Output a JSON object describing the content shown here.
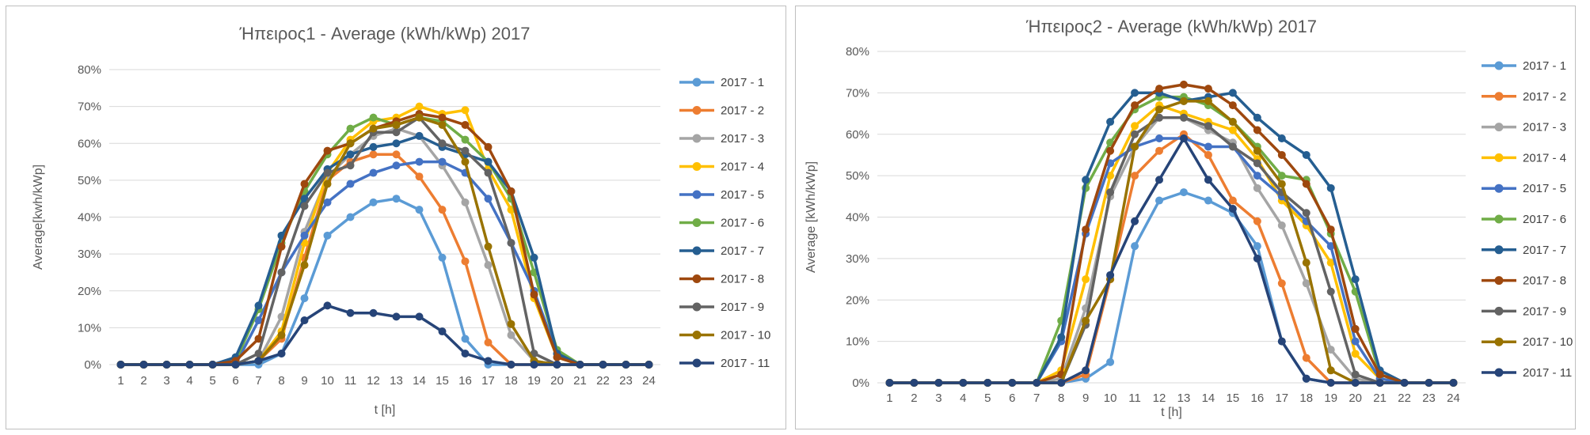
{
  "chart_data": [
    {
      "type": "line",
      "title": "Ήπειρος1 - Average (kWh/kWp) 2017",
      "xlabel": "t [h]",
      "ylabel": "Average[kwh/kWp]",
      "x": [
        1,
        2,
        3,
        4,
        5,
        6,
        7,
        8,
        9,
        10,
        11,
        12,
        13,
        14,
        15,
        16,
        17,
        18,
        19,
        20,
        21,
        22,
        23,
        24
      ],
      "ylim": [
        0,
        80
      ],
      "yticks": [
        "0%",
        "10%",
        "20%",
        "30%",
        "40%",
        "50%",
        "60%",
        "70%",
        "80%"
      ],
      "grid": true,
      "legend_position": "right",
      "series": [
        {
          "name": "2017 - 1",
          "color": "#5b9bd5",
          "values": [
            0,
            0,
            0,
            0,
            0,
            0,
            0,
            3,
            18,
            35,
            40,
            44,
            45,
            42,
            29,
            7,
            0,
            0,
            0,
            0,
            0,
            0,
            0,
            0
          ]
        },
        {
          "name": "2017 - 2",
          "color": "#ed7d31",
          "values": [
            0,
            0,
            0,
            0,
            0,
            0,
            1,
            7,
            29,
            50,
            55,
            57,
            57,
            51,
            42,
            28,
            6,
            0,
            0,
            0,
            0,
            0,
            0,
            0
          ]
        },
        {
          "name": "2017 - 3",
          "color": "#a5a5a5",
          "values": [
            0,
            0,
            0,
            0,
            0,
            0,
            1,
            13,
            36,
            51,
            57,
            62,
            64,
            62,
            54,
            44,
            27,
            8,
            1,
            0,
            0,
            0,
            0,
            0
          ]
        },
        {
          "name": "2017 - 4",
          "color": "#ffc000",
          "values": [
            0,
            0,
            0,
            0,
            0,
            0,
            1,
            9,
            33,
            52,
            61,
            66,
            67,
            70,
            68,
            69,
            53,
            42,
            18,
            2,
            0,
            0,
            0,
            0
          ]
        },
        {
          "name": "2017 - 5",
          "color": "#4472c4",
          "values": [
            0,
            0,
            0,
            0,
            0,
            0,
            12,
            25,
            35,
            44,
            49,
            52,
            54,
            55,
            55,
            52,
            45,
            33,
            20,
            3,
            0,
            0,
            0,
            0
          ]
        },
        {
          "name": "2017 - 6",
          "color": "#70ad47",
          "values": [
            0,
            0,
            0,
            0,
            0,
            1,
            15,
            33,
            47,
            57,
            64,
            67,
            65,
            67,
            66,
            61,
            55,
            45,
            25,
            4,
            0,
            0,
            0,
            0
          ]
        },
        {
          "name": "2017 - 7",
          "color": "#255e91",
          "values": [
            0,
            0,
            0,
            0,
            0,
            2,
            16,
            35,
            45,
            53,
            57,
            59,
            60,
            62,
            59,
            57,
            55,
            47,
            29,
            3,
            0,
            0,
            0,
            0
          ]
        },
        {
          "name": "2017 - 8",
          "color": "#9e480e",
          "values": [
            0,
            0,
            0,
            0,
            0,
            1,
            7,
            32,
            49,
            58,
            60,
            64,
            66,
            68,
            67,
            65,
            59,
            47,
            19,
            2,
            0,
            0,
            0,
            0
          ]
        },
        {
          "name": "2017 - 9",
          "color": "#636363",
          "values": [
            0,
            0,
            0,
            0,
            0,
            0,
            3,
            25,
            43,
            52,
            54,
            63,
            63,
            67,
            60,
            58,
            52,
            33,
            3,
            0,
            0,
            0,
            0,
            0
          ]
        },
        {
          "name": "2017 - 10",
          "color": "#997300",
          "values": [
            0,
            0,
            0,
            0,
            0,
            0,
            1,
            8,
            27,
            49,
            60,
            64,
            65,
            67,
            65,
            55,
            32,
            11,
            1,
            0,
            0,
            0,
            0,
            0
          ]
        },
        {
          "name": "2017 - 11",
          "color": "#264478",
          "values": [
            0,
            0,
            0,
            0,
            0,
            0,
            1,
            3,
            12,
            16,
            14,
            14,
            13,
            13,
            9,
            3,
            1,
            0,
            0,
            0,
            0,
            0,
            0,
            0
          ]
        }
      ]
    },
    {
      "type": "line",
      "title": "Ήπειρος2 - Average (kWh/kWp) 2017",
      "xlabel": "t [h]",
      "ylabel": "Average [kWh/kWp]",
      "x": [
        1,
        2,
        3,
        4,
        5,
        6,
        7,
        8,
        9,
        10,
        11,
        12,
        13,
        14,
        15,
        16,
        17,
        18,
        19,
        20,
        21,
        22,
        23,
        24
      ],
      "ylim": [
        0,
        80
      ],
      "yticks": [
        "0%",
        "10%",
        "20%",
        "30%",
        "40%",
        "50%",
        "60%",
        "70%",
        "80%"
      ],
      "grid": true,
      "legend_position": "right",
      "series": [
        {
          "name": "2017 - 1",
          "color": "#5b9bd5",
          "values": [
            0,
            0,
            0,
            0,
            0,
            0,
            0,
            0,
            1,
            5,
            33,
            44,
            46,
            44,
            41,
            33,
            10,
            1,
            0,
            0,
            0,
            0,
            0,
            0
          ]
        },
        {
          "name": "2017 - 2",
          "color": "#ed7d31",
          "values": [
            0,
            0,
            0,
            0,
            0,
            0,
            0,
            0,
            2,
            25,
            50,
            56,
            60,
            55,
            44,
            39,
            24,
            6,
            0,
            0,
            0,
            0,
            0,
            0
          ]
        },
        {
          "name": "2017 - 3",
          "color": "#a5a5a5",
          "values": [
            0,
            0,
            0,
            0,
            0,
            0,
            0,
            1,
            18,
            45,
            57,
            64,
            64,
            61,
            58,
            47,
            38,
            24,
            8,
            1,
            0,
            0,
            0,
            0
          ]
        },
        {
          "name": "2017 - 4",
          "color": "#ffc000",
          "values": [
            0,
            0,
            0,
            0,
            0,
            0,
            0,
            3,
            25,
            50,
            62,
            67,
            65,
            63,
            61,
            54,
            44,
            38,
            29,
            7,
            1,
            0,
            0,
            0
          ]
        },
        {
          "name": "2017 - 5",
          "color": "#4472c4",
          "values": [
            0,
            0,
            0,
            0,
            0,
            0,
            0,
            10,
            36,
            53,
            57,
            59,
            59,
            57,
            57,
            50,
            45,
            39,
            33,
            10,
            1,
            0,
            0,
            0
          ]
        },
        {
          "name": "2017 - 6",
          "color": "#70ad47",
          "values": [
            0,
            0,
            0,
            0,
            0,
            0,
            0,
            15,
            47,
            58,
            66,
            69,
            69,
            67,
            63,
            57,
            50,
            49,
            36,
            22,
            2,
            0,
            0,
            0
          ]
        },
        {
          "name": "2017 - 7",
          "color": "#255e91",
          "values": [
            0,
            0,
            0,
            0,
            0,
            0,
            0,
            11,
            49,
            63,
            70,
            70,
            68,
            69,
            70,
            64,
            59,
            55,
            47,
            25,
            3,
            0,
            0,
            0
          ]
        },
        {
          "name": "2017 - 8",
          "color": "#9e480e",
          "values": [
            0,
            0,
            0,
            0,
            0,
            0,
            0,
            2,
            37,
            56,
            67,
            71,
            72,
            71,
            67,
            61,
            55,
            48,
            37,
            13,
            2,
            0,
            0,
            0
          ]
        },
        {
          "name": "2017 - 9",
          "color": "#636363",
          "values": [
            0,
            0,
            0,
            0,
            0,
            0,
            0,
            0,
            14,
            46,
            60,
            64,
            64,
            62,
            57,
            53,
            46,
            41,
            22,
            2,
            0,
            0,
            0,
            0
          ]
        },
        {
          "name": "2017 - 10",
          "color": "#997300",
          "values": [
            0,
            0,
            0,
            0,
            0,
            0,
            0,
            0,
            15,
            25,
            57,
            66,
            68,
            68,
            63,
            56,
            48,
            29,
            3,
            0,
            0,
            0,
            0,
            0
          ]
        },
        {
          "name": "2017 - 11",
          "color": "#264478",
          "values": [
            0,
            0,
            0,
            0,
            0,
            0,
            0,
            0,
            3,
            26,
            39,
            49,
            59,
            49,
            42,
            30,
            10,
            1,
            0,
            0,
            0,
            0,
            0,
            0
          ]
        }
      ]
    }
  ]
}
